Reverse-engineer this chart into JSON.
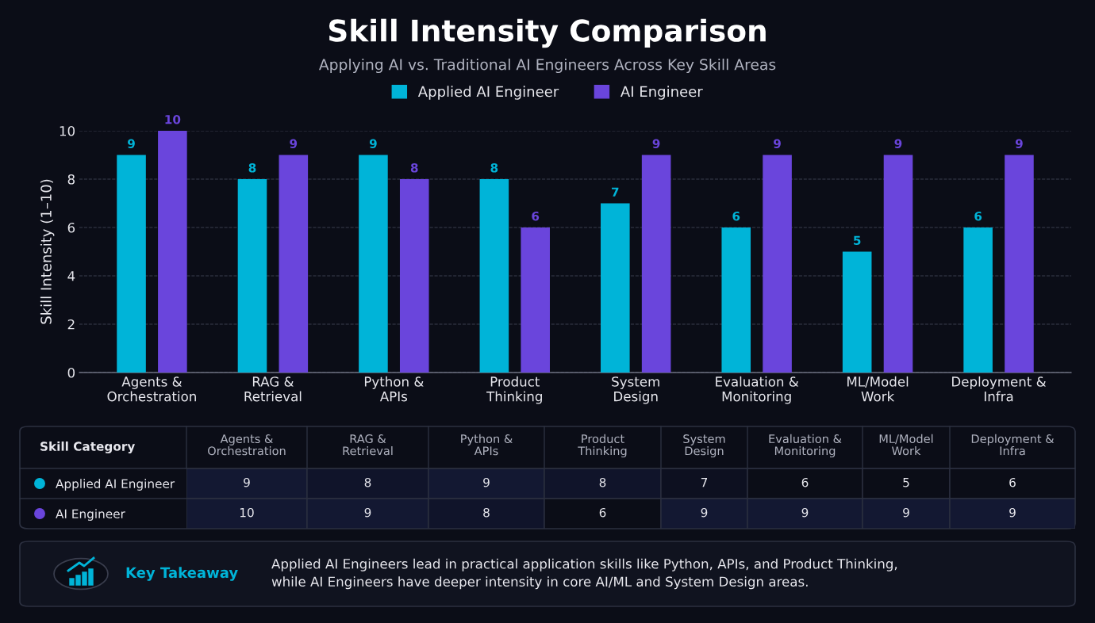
{
  "chart_data": [
    {
      "type": "bar",
      "title": "Skill Intensity Comparison",
      "subtitle": "Applying AI vs. Traditional AI Engineers Across Key Skill Areas",
      "ylabel": "Skill Intensity (1–10)",
      "categories": [
        "Agents &\nOrchestration",
        "RAG &\nRetrieval",
        "Python &\nAPIs",
        "Product\nThinking",
        "System\nDesign",
        "Evaluation &\nMonitoring",
        "ML/Model\nWork",
        "Deployment &\nInfra"
      ],
      "series": [
        {
          "name": "Applied AI Engineer",
          "color": "#00b4d8",
          "values": [
            9,
            8,
            9,
            8,
            7,
            6,
            5,
            6
          ]
        },
        {
          "name": "AI Engineer",
          "color": "#6a45dc",
          "values": [
            10,
            9,
            8,
            6,
            9,
            9,
            9,
            9
          ]
        }
      ],
      "ylim": [
        0,
        10
      ],
      "yticks": [
        0,
        2,
        4,
        6,
        8,
        10
      ],
      "grid": "y",
      "legend": "top",
      "data_labels": true,
      "annotations": [
        "Key Takeaway",
        "Applied AI Engineers lead in practical application skills like Python, APIs, and Product Thinking,\nwhile AI Engineers have deeper intensity in core AI/ML and System Design areas."
      ]
    },
    {
      "type": "heatmap",
      "categories": [
        "Agents &\nOrchestration",
        "RAG &\nRetrieval",
        "Python &\nAPIs",
        "Product\nThinking",
        "System\nDesign",
        "Evaluation &\nMonitoring",
        "ML/Model\nWork",
        "Deployment &\nInfra"
      ],
      "y_categories": [
        "Applied AI Engineer",
        "AI Engineer"
      ],
      "cells": [
        [
          9,
          8,
          9,
          8,
          7,
          6,
          5,
          6
        ],
        [
          10,
          9,
          8,
          6,
          9,
          9,
          9,
          9
        ]
      ],
      "data_labels": true,
      "annotations": [
        "Skill Category"
      ]
    }
  ]
}
